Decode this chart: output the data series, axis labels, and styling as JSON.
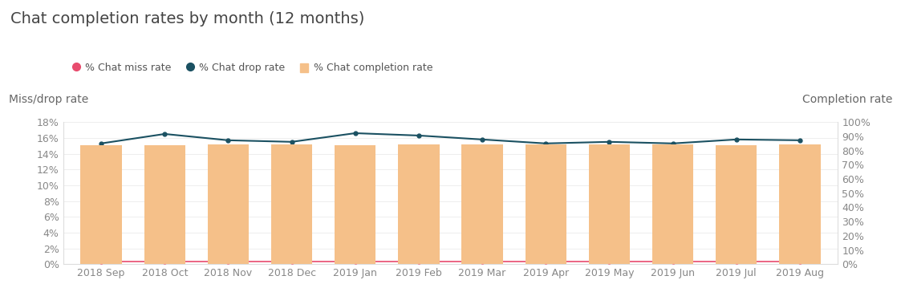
{
  "title": "Chat completion rates by month (12 months)",
  "categories": [
    "2018 Sep",
    "2018 Oct",
    "2018 Nov",
    "2018 Dec",
    "2019 Jan",
    "2019 Feb",
    "2019 Mar",
    "2019 Apr",
    "2019 May",
    "2019 Jun",
    "2019 Jul",
    "2019 Aug"
  ],
  "chat_miss_rate": [
    0.3,
    0.3,
    0.3,
    0.3,
    0.3,
    0.3,
    0.3,
    0.3,
    0.3,
    0.3,
    0.3,
    0.3
  ],
  "chat_drop_rate": [
    15.3,
    16.5,
    15.7,
    15.5,
    16.6,
    16.3,
    15.8,
    15.3,
    15.5,
    15.3,
    15.8,
    15.7
  ],
  "chat_completion_rate": [
    84.0,
    84.0,
    84.2,
    84.2,
    84.0,
    84.2,
    84.2,
    84.5,
    84.3,
    84.5,
    84.0,
    84.2
  ],
  "bar_color": "#f5c089",
  "miss_line_color": "#e84c6e",
  "drop_line_color": "#1b5162",
  "left_ylim": [
    0,
    18
  ],
  "right_ylim": [
    0,
    100
  ],
  "left_yticks": [
    0,
    2,
    4,
    6,
    8,
    10,
    12,
    14,
    16,
    18
  ],
  "right_yticks": [
    0,
    10,
    20,
    30,
    40,
    50,
    60,
    70,
    80,
    90,
    100
  ],
  "ylabel_left": "Miss/drop rate",
  "ylabel_right": "Completion rate",
  "background_color": "#ffffff",
  "legend_miss": "% Chat miss rate",
  "legend_drop": "% Chat drop rate",
  "legend_completion": "% Chat completion rate",
  "title_fontsize": 14,
  "axis_label_fontsize": 10,
  "tick_fontsize": 9,
  "legend_fontsize": 9
}
